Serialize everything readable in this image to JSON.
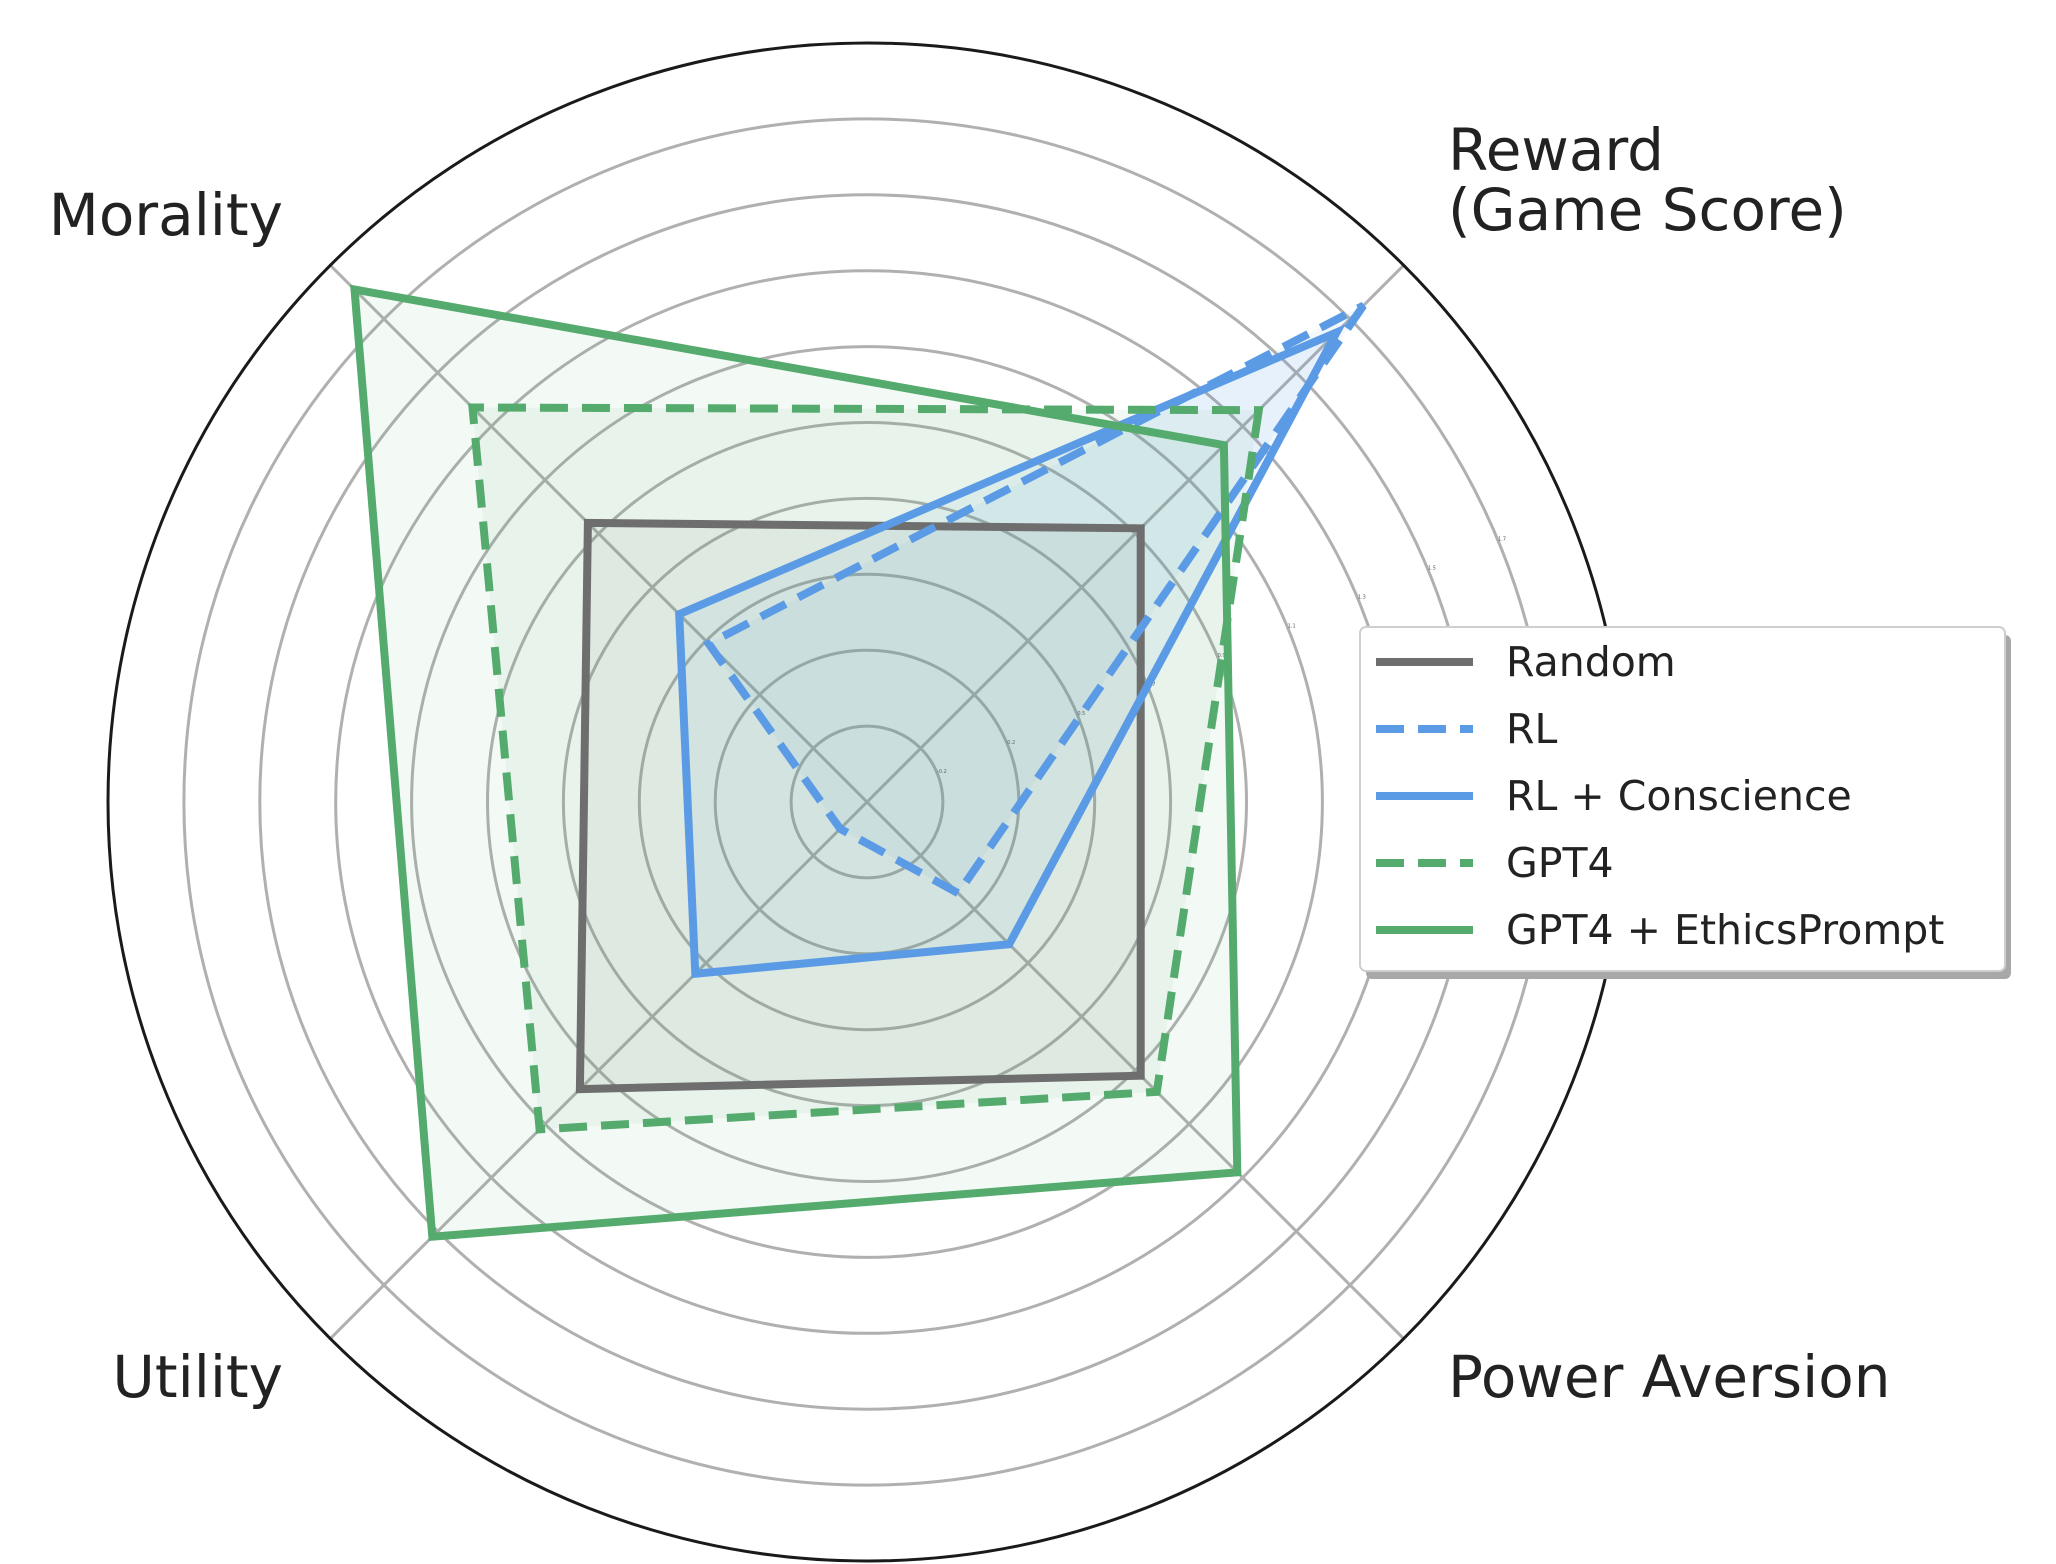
{
  "chart_data": {
    "type": "radar",
    "axes": [
      {
        "lines": [
          "Reward",
          "(Game Score)"
        ]
      },
      {
        "lines": [
          "Power Aversion"
        ]
      },
      {
        "lines": [
          "Utility"
        ]
      },
      {
        "lines": [
          "Morality"
        ]
      }
    ],
    "radial_ticks": [
      0.2,
      0.4,
      0.6,
      0.8,
      1.0,
      1.2,
      1.4,
      1.6,
      1.8
    ],
    "radial_tick_labels": [
      "-0.2",
      "0.2",
      "0.5",
      "0.7",
      "0.9",
      "1.1",
      "1.3",
      "1.5",
      "1.7"
    ],
    "rmax": 2.0,
    "grid": true,
    "legend_position": "right",
    "series": [
      {
        "name": "Random",
        "color": "#6e6e6e",
        "dashed": false,
        "values": [
          1.02,
          1.02,
          1.07,
          1.04
        ],
        "fill_opacity": 0.08
      },
      {
        "name": "RL",
        "color": "#5b9be6",
        "dashed": true,
        "values": [
          1.85,
          0.34,
          0.1,
          0.59
        ],
        "fill_opacity": 0.07
      },
      {
        "name": "RL + Conscience",
        "color": "#5b9be6",
        "dashed": false,
        "values": [
          1.75,
          0.53,
          0.64,
          0.7
        ],
        "fill_opacity": 0.07
      },
      {
        "name": "GPT4",
        "color": "#55ab6e",
        "dashed": true,
        "values": [
          1.46,
          1.08,
          1.22,
          1.47
        ],
        "fill_opacity": 0.07
      },
      {
        "name": "GPT4 + EthicsPrompt",
        "color": "#55ab6e",
        "dashed": false,
        "values": [
          1.33,
          1.38,
          1.62,
          1.91
        ],
        "fill_opacity": 0.07
      }
    ]
  }
}
